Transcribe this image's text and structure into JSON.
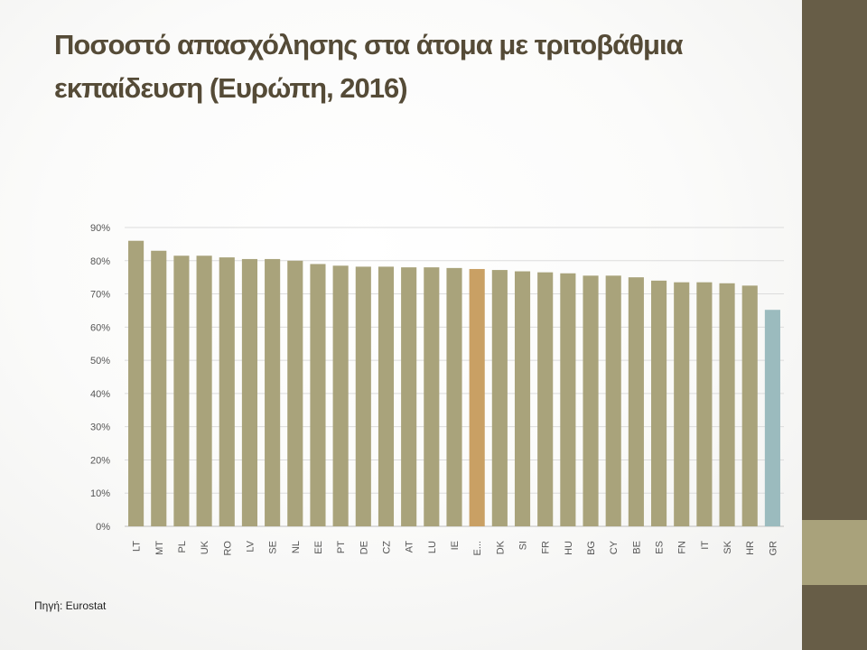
{
  "slide": {
    "title_line1": "Ποσοστό απασχόλησης στα άτομα με τριτοβάθμια",
    "title_line2": "εκπαίδευση (Ευρώπη, 2016)",
    "source": "Πηγή: Eurostat"
  },
  "colors": {
    "bar": "#a9a37b",
    "bar_highlight": "#c9a064",
    "bar_greece": "#9bbbbe",
    "side_bar": "#675d47",
    "side_accent": "#a9a27b"
  },
  "chart_data": {
    "type": "bar",
    "categories": [
      "LT",
      "MT",
      "PL",
      "UK",
      "RO",
      "LV",
      "SE",
      "NL",
      "EE",
      "PT",
      "DE",
      "CZ",
      "AT",
      "LU",
      "IE",
      "E...",
      "DK",
      "SI",
      "FR",
      "HU",
      "BG",
      "CY",
      "BE",
      "ES",
      "FN",
      "IT",
      "SK",
      "HR",
      "GR"
    ],
    "values": [
      0.86,
      0.83,
      0.815,
      0.815,
      0.81,
      0.805,
      0.805,
      0.8,
      0.79,
      0.785,
      0.782,
      0.782,
      0.78,
      0.78,
      0.778,
      0.775,
      0.772,
      0.768,
      0.765,
      0.762,
      0.755,
      0.755,
      0.75,
      0.74,
      0.735,
      0.735,
      0.732,
      0.725,
      0.652
    ],
    "highlight_index": 15,
    "greece_index": 28,
    "ylim": [
      0,
      0.9
    ],
    "yticks": [
      "0%",
      "10%",
      "20%",
      "30%",
      "40%",
      "50%",
      "60%",
      "70%",
      "80%",
      "90%"
    ],
    "grid": true,
    "title": "",
    "xlabel": "",
    "ylabel": ""
  }
}
